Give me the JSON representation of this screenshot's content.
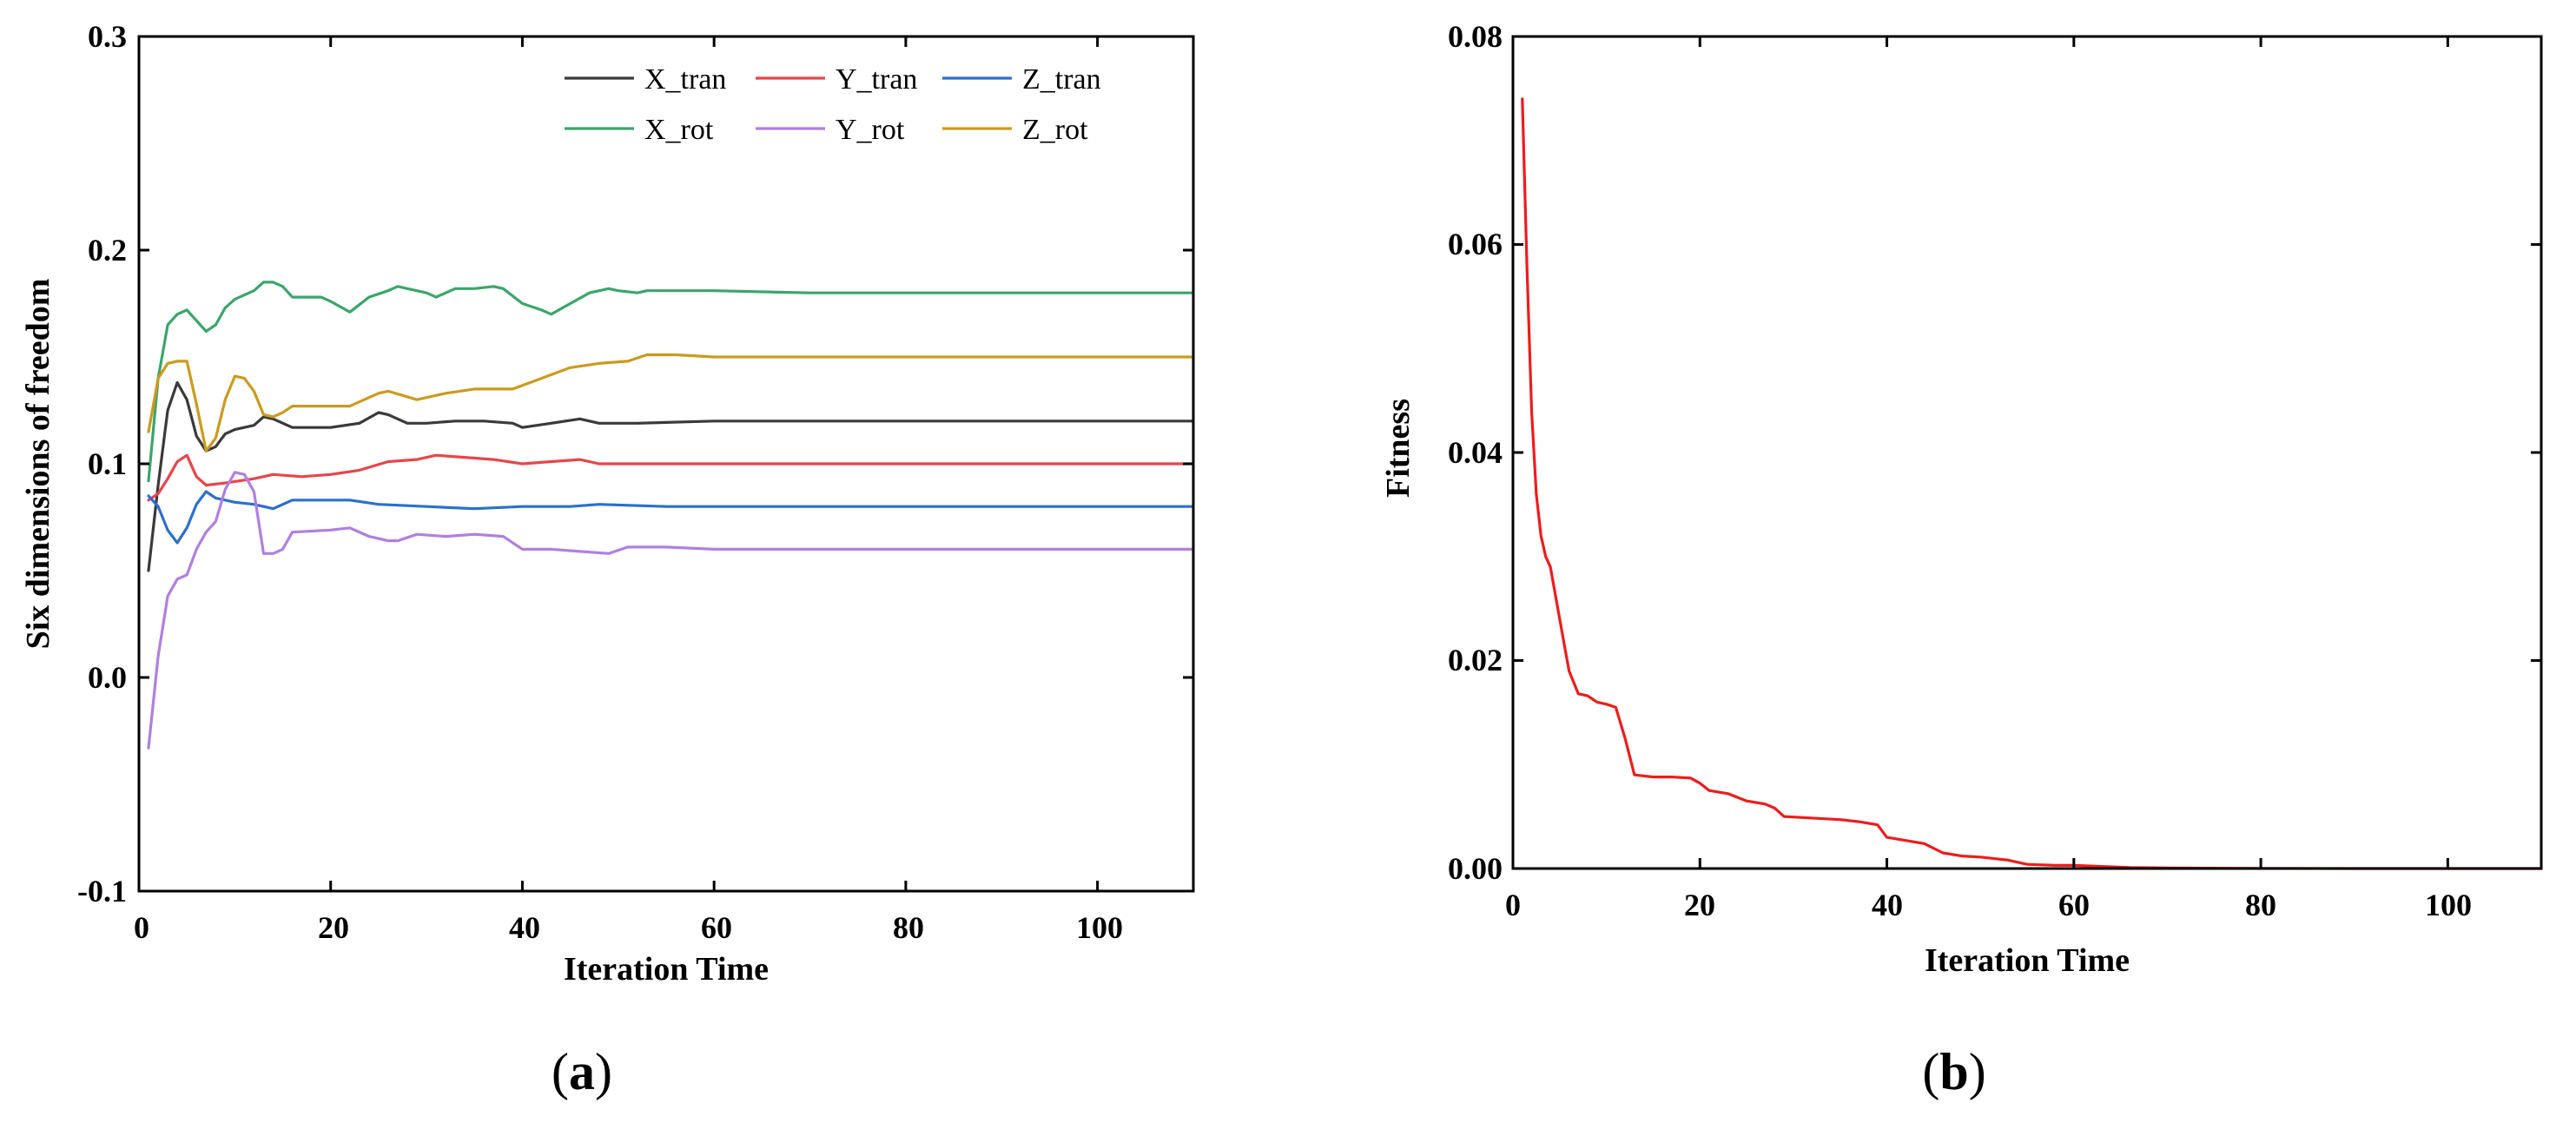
{
  "chart_data": [
    {
      "id": "a",
      "type": "line",
      "caption": "(a)",
      "caption_letter": "a",
      "xlabel": "Iteration Time",
      "ylabel": "Six dimensions of freedom",
      "xlim": [
        0,
        110
      ],
      "ylim": [
        -0.1,
        0.3
      ],
      "xticks": [
        0,
        20,
        40,
        60,
        80,
        100
      ],
      "yticks": [
        -0.1,
        0.0,
        0.1,
        0.2,
        0.3
      ],
      "xtick_labels": [
        "0",
        "20",
        "40",
        "60",
        "80",
        "100"
      ],
      "ytick_labels": [
        "-0.1",
        "0.0",
        "0.1",
        "0.2",
        "0.3"
      ],
      "legend_position": "top-right",
      "series": [
        {
          "name": "X_tran",
          "color": "#3a3a3a",
          "points": [
            [
              1,
              0.05
            ],
            [
              2,
              0.09
            ],
            [
              3,
              0.125
            ],
            [
              4,
              0.138
            ],
            [
              5,
              0.13
            ],
            [
              6,
              0.113
            ],
            [
              7,
              0.106
            ],
            [
              8,
              0.108
            ],
            [
              9,
              0.114
            ],
            [
              10,
              0.116
            ],
            [
              12,
              0.118
            ],
            [
              13,
              0.122
            ],
            [
              14,
              0.121
            ],
            [
              16,
              0.117
            ],
            [
              18,
              0.117
            ],
            [
              20,
              0.117
            ],
            [
              23,
              0.119
            ],
            [
              25,
              0.124
            ],
            [
              26,
              0.123
            ],
            [
              28,
              0.119
            ],
            [
              30,
              0.119
            ],
            [
              33,
              0.12
            ],
            [
              36,
              0.12
            ],
            [
              39,
              0.119
            ],
            [
              40,
              0.117
            ],
            [
              43,
              0.119
            ],
            [
              46,
              0.121
            ],
            [
              48,
              0.119
            ],
            [
              52,
              0.119
            ],
            [
              60,
              0.12
            ],
            [
              70,
              0.12
            ],
            [
              80,
              0.12
            ],
            [
              90,
              0.12
            ],
            [
              100,
              0.12
            ],
            [
              110,
              0.12
            ]
          ]
        },
        {
          "name": "Y_tran",
          "color": "#e8454a",
          "points": [
            [
              1,
              0.083
            ],
            [
              2,
              0.086
            ],
            [
              3,
              0.093
            ],
            [
              4,
              0.101
            ],
            [
              5,
              0.104
            ],
            [
              6,
              0.094
            ],
            [
              7,
              0.09
            ],
            [
              9,
              0.091
            ],
            [
              12,
              0.093
            ],
            [
              14,
              0.095
            ],
            [
              17,
              0.094
            ],
            [
              20,
              0.095
            ],
            [
              23,
              0.097
            ],
            [
              26,
              0.101
            ],
            [
              29,
              0.102
            ],
            [
              31,
              0.104
            ],
            [
              34,
              0.103
            ],
            [
              37,
              0.102
            ],
            [
              40,
              0.1
            ],
            [
              43,
              0.101
            ],
            [
              46,
              0.102
            ],
            [
              48,
              0.1
            ],
            [
              55,
              0.1
            ],
            [
              70,
              0.1
            ],
            [
              90,
              0.1
            ],
            [
              110,
              0.1
            ]
          ]
        },
        {
          "name": "Z_tran",
          "color": "#2b6fcf",
          "points": [
            [
              1,
              0.085
            ],
            [
              2,
              0.08
            ],
            [
              3,
              0.069
            ],
            [
              4,
              0.063
            ],
            [
              5,
              0.07
            ],
            [
              6,
              0.081
            ],
            [
              7,
              0.087
            ],
            [
              8,
              0.084
            ],
            [
              10,
              0.082
            ],
            [
              12,
              0.081
            ],
            [
              14,
              0.079
            ],
            [
              16,
              0.083
            ],
            [
              20,
              0.083
            ],
            [
              22,
              0.083
            ],
            [
              25,
              0.081
            ],
            [
              30,
              0.08
            ],
            [
              35,
              0.079
            ],
            [
              40,
              0.08
            ],
            [
              45,
              0.08
            ],
            [
              48,
              0.081
            ],
            [
              55,
              0.08
            ],
            [
              70,
              0.08
            ],
            [
              90,
              0.08
            ],
            [
              110,
              0.08
            ]
          ]
        },
        {
          "name": "X_rot",
          "color": "#3aa66a",
          "points": [
            [
              1,
              0.092
            ],
            [
              2,
              0.14
            ],
            [
              3,
              0.165
            ],
            [
              4,
              0.17
            ],
            [
              5,
              0.172
            ],
            [
              6,
              0.167
            ],
            [
              7,
              0.162
            ],
            [
              8,
              0.165
            ],
            [
              9,
              0.173
            ],
            [
              10,
              0.177
            ],
            [
              12,
              0.181
            ],
            [
              13,
              0.185
            ],
            [
              14,
              0.185
            ],
            [
              15,
              0.183
            ],
            [
              16,
              0.178
            ],
            [
              19,
              0.178
            ],
            [
              20,
              0.176
            ],
            [
              22,
              0.171
            ],
            [
              24,
              0.178
            ],
            [
              26,
              0.181
            ],
            [
              27,
              0.183
            ],
            [
              28,
              0.182
            ],
            [
              30,
              0.18
            ],
            [
              31,
              0.178
            ],
            [
              33,
              0.182
            ],
            [
              35,
              0.182
            ],
            [
              37,
              0.183
            ],
            [
              38,
              0.182
            ],
            [
              40,
              0.175
            ],
            [
              42,
              0.172
            ],
            [
              43,
              0.17
            ],
            [
              45,
              0.175
            ],
            [
              47,
              0.18
            ],
            [
              49,
              0.182
            ],
            [
              50,
              0.181
            ],
            [
              52,
              0.18
            ],
            [
              53,
              0.181
            ],
            [
              60,
              0.181
            ],
            [
              70,
              0.18
            ],
            [
              90,
              0.18
            ],
            [
              110,
              0.18
            ]
          ]
        },
        {
          "name": "Y_rot",
          "color": "#b07fe0",
          "points": [
            [
              1,
              -0.033
            ],
            [
              2,
              0.01
            ],
            [
              3,
              0.038
            ],
            [
              4,
              0.046
            ],
            [
              5,
              0.048
            ],
            [
              6,
              0.06
            ],
            [
              7,
              0.068
            ],
            [
              8,
              0.073
            ],
            [
              9,
              0.088
            ],
            [
              10,
              0.096
            ],
            [
              11,
              0.095
            ],
            [
              12,
              0.087
            ],
            [
              13,
              0.058
            ],
            [
              14,
              0.058
            ],
            [
              15,
              0.06
            ],
            [
              16,
              0.068
            ],
            [
              20,
              0.069
            ],
            [
              22,
              0.07
            ],
            [
              24,
              0.066
            ],
            [
              26,
              0.064
            ],
            [
              27,
              0.064
            ],
            [
              29,
              0.067
            ],
            [
              32,
              0.066
            ],
            [
              35,
              0.067
            ],
            [
              38,
              0.066
            ],
            [
              40,
              0.06
            ],
            [
              43,
              0.06
            ],
            [
              46,
              0.059
            ],
            [
              49,
              0.058
            ],
            [
              51,
              0.061
            ],
            [
              55,
              0.061
            ],
            [
              60,
              0.06
            ],
            [
              70,
              0.06
            ],
            [
              90,
              0.06
            ],
            [
              110,
              0.06
            ]
          ]
        },
        {
          "name": "Z_rot",
          "color": "#cc9a1e",
          "points": [
            [
              1,
              0.115
            ],
            [
              2,
              0.14
            ],
            [
              3,
              0.147
            ],
            [
              4,
              0.148
            ],
            [
              5,
              0.148
            ],
            [
              6,
              0.128
            ],
            [
              7,
              0.106
            ],
            [
              8,
              0.112
            ],
            [
              9,
              0.13
            ],
            [
              10,
              0.141
            ],
            [
              11,
              0.14
            ],
            [
              12,
              0.134
            ],
            [
              13,
              0.123
            ],
            [
              14,
              0.122
            ],
            [
              15,
              0.124
            ],
            [
              16,
              0.127
            ],
            [
              20,
              0.127
            ],
            [
              22,
              0.127
            ],
            [
              25,
              0.133
            ],
            [
              26,
              0.134
            ],
            [
              29,
              0.13
            ],
            [
              32,
              0.133
            ],
            [
              35,
              0.135
            ],
            [
              39,
              0.135
            ],
            [
              42,
              0.14
            ],
            [
              45,
              0.145
            ],
            [
              48,
              0.147
            ],
            [
              51,
              0.148
            ],
            [
              53,
              0.151
            ],
            [
              56,
              0.151
            ],
            [
              60,
              0.15
            ],
            [
              70,
              0.15
            ],
            [
              90,
              0.15
            ],
            [
              110,
              0.15
            ]
          ]
        }
      ]
    },
    {
      "id": "b",
      "type": "line",
      "caption": "(b)",
      "caption_letter": "b",
      "xlabel": "Iteration Time",
      "ylabel": "Fitness",
      "xlim": [
        0,
        110
      ],
      "ylim": [
        0,
        0.08
      ],
      "xticks": [
        0,
        20,
        40,
        60,
        80,
        100
      ],
      "yticks": [
        0,
        0.02,
        0.04,
        0.06,
        0.08
      ],
      "xtick_labels": [
        "0",
        "20",
        "40",
        "60",
        "80",
        "100"
      ],
      "ytick_labels": [
        "0.00",
        "0.02",
        "0.04",
        "0.06",
        "0.08"
      ],
      "series": [
        {
          "name": "Fitness",
          "color": "#ee1c1c",
          "points": [
            [
              1,
              0.074
            ],
            [
              1.5,
              0.058
            ],
            [
              2,
              0.044
            ],
            [
              2.5,
              0.036
            ],
            [
              3,
              0.032
            ],
            [
              3.5,
              0.03
            ],
            [
              4,
              0.029
            ],
            [
              5,
              0.024
            ],
            [
              6,
              0.019
            ],
            [
              7,
              0.0168
            ],
            [
              8,
              0.0166
            ],
            [
              9,
              0.016
            ],
            [
              10,
              0.0158
            ],
            [
              11,
              0.0155
            ],
            [
              12,
              0.0125
            ],
            [
              13,
              0.009
            ],
            [
              15,
              0.0088
            ],
            [
              17,
              0.0088
            ],
            [
              19,
              0.0087
            ],
            [
              20,
              0.0082
            ],
            [
              21,
              0.0075
            ],
            [
              23,
              0.0072
            ],
            [
              25,
              0.0065
            ],
            [
              27,
              0.0062
            ],
            [
              28,
              0.0058
            ],
            [
              29,
              0.005
            ],
            [
              31,
              0.0049
            ],
            [
              35,
              0.0047
            ],
            [
              37,
              0.0045
            ],
            [
              39,
              0.0042
            ],
            [
              40,
              0.003
            ],
            [
              42,
              0.0027
            ],
            [
              44,
              0.0024
            ],
            [
              46,
              0.0015
            ],
            [
              48,
              0.0012
            ],
            [
              50,
              0.0011
            ],
            [
              53,
              0.0008
            ],
            [
              55,
              0.0004
            ],
            [
              58,
              0.0003
            ],
            [
              60,
              0.0003
            ],
            [
              63,
              0.0002
            ],
            [
              66,
              0.0001
            ],
            [
              70,
              5e-05
            ],
            [
              80,
              2e-05
            ],
            [
              90,
              0
            ],
            [
              110,
              0
            ]
          ]
        }
      ]
    }
  ]
}
